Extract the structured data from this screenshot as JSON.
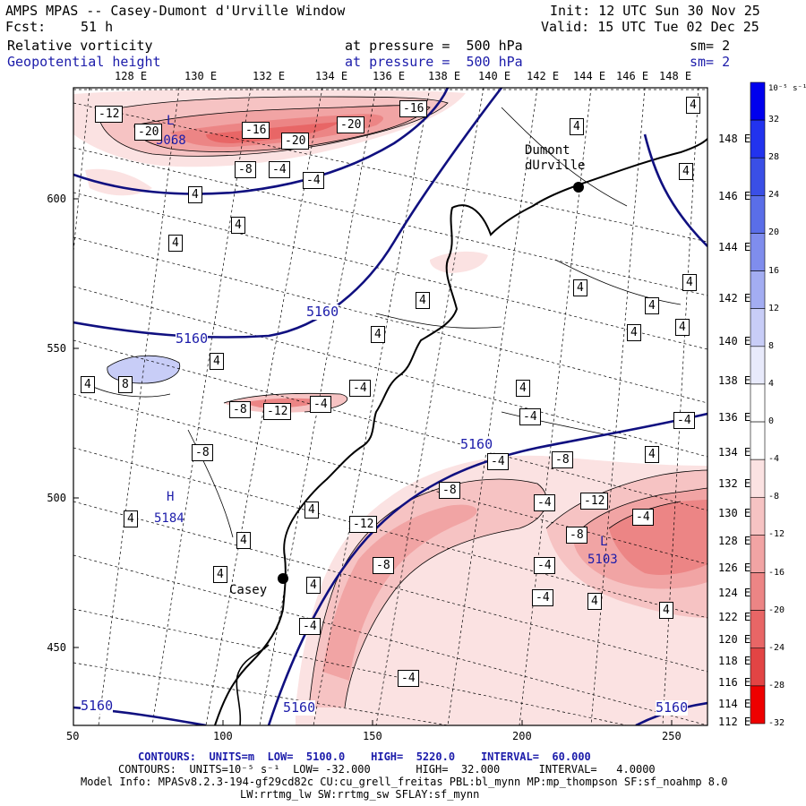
{
  "header": {
    "title": "AMPS MPAS -- Casey-Dumont d'Urville Window",
    "init": "Init: 12 UTC Sun 30 Nov 25",
    "fcst_label": "Fcst:",
    "fcst_hours": "51 h",
    "valid": "Valid: 15 UTC Tue 02 Dec 25",
    "field1": {
      "name": "Relative vorticity",
      "pressure": "at pressure =  500 hPa",
      "smooth": "sm= 2"
    },
    "field2": {
      "name": "Geopotential height",
      "pressure": "at pressure =  500 hPa",
      "smooth": "sm= 2"
    }
  },
  "longitude_labels": [
    "128 E",
    "130 E",
    "132 E",
    "134 E",
    "136 E",
    "138 E",
    "140 E",
    "142 E",
    "144 E",
    "146 E",
    "148 E"
  ],
  "right_axis_labels": [
    "148 E",
    "146 E",
    "144 E",
    "142 E",
    "140 E",
    "138 E",
    "136 E",
    "134 E",
    "132 E",
    "130 E",
    "128 E",
    "126 E",
    "124 E",
    "122 E",
    "120 E",
    "118 E",
    "116 E",
    "114 E",
    "112 E"
  ],
  "left_axis_ticks": [
    "600",
    "550",
    "500",
    "450"
  ],
  "bottom_axis_ticks": [
    "50",
    "100",
    "150",
    "200",
    "250"
  ],
  "colorbar": {
    "unit_label": "10⁻⁵ s⁻¹",
    "tick_labels": [
      "32",
      "28",
      "24",
      "20",
      "16",
      "12",
      "8",
      "4",
      "0",
      "-4",
      "-8",
      "-12",
      "-16",
      "-20",
      "-24",
      "-28",
      "-32"
    ],
    "colors": [
      "#0000ee",
      "#2233ee",
      "#3a4fe6",
      "#5a6ee8",
      "#7f8ded",
      "#a3adf2",
      "#c8cdf7",
      "#e8eafb",
      "#ffffff",
      "#ffffff",
      "#fbe2e2",
      "#f6c3c3",
      "#f1a4a4",
      "#ec8585",
      "#e86666",
      "#e24444",
      "#ee0000"
    ]
  },
  "places": [
    {
      "name": "Dumont\ndUrville"
    },
    {
      "name": "Casey"
    }
  ],
  "pressure_systems": [
    {
      "symbol": "H",
      "value": "5184"
    },
    {
      "symbol": "L",
      "value": "5103"
    },
    {
      "symbol": "L",
      "value": "5068"
    }
  ],
  "height_labels": [
    "5160",
    "5160",
    "5160",
    "5160",
    "5160",
    "5160"
  ],
  "vorticity_labels": [
    "-12",
    "-20",
    "-16",
    "-20",
    "-20",
    "-16",
    "-8",
    "-4",
    "-4",
    "4",
    "4",
    "4",
    "4",
    "4",
    "4",
    "4",
    "4",
    "4",
    "4",
    "4",
    "4",
    "4",
    "8",
    "4",
    "-4",
    "-8",
    "-12",
    "-4",
    "4",
    "4",
    "-4",
    "-4",
    "4",
    "-8",
    "-4",
    "-8",
    "-12",
    "-4",
    "-8",
    "-12",
    "-4",
    "-4",
    "-8",
    "-4",
    "4",
    "4",
    "4",
    "4",
    "-4",
    "-4",
    "-8",
    "4",
    "4",
    "4"
  ],
  "footer": {
    "line1": {
      "label": "CONTOURS:",
      "units": "UNITS=m",
      "low": "LOW=  5100.0",
      "high": "HIGH=  5220.0",
      "interval": "INTERVAL=  60.000"
    },
    "line2": "CONTOURS:  UNITS=10⁻⁵ s⁻¹  LOW= -32.000       HIGH=  32.000      INTERVAL=   4.0000",
    "line3": "Model Info: MPASv8.2.3-194-gf29cd82c CU:cu_grell_freitas PBL:bl_mynn MP:mp_thompson SF:sf_noahmp 8.0",
    "line4": "LW:rrtmg_lw SW:rrtmg_sw SFLAY:sf_mynn"
  }
}
